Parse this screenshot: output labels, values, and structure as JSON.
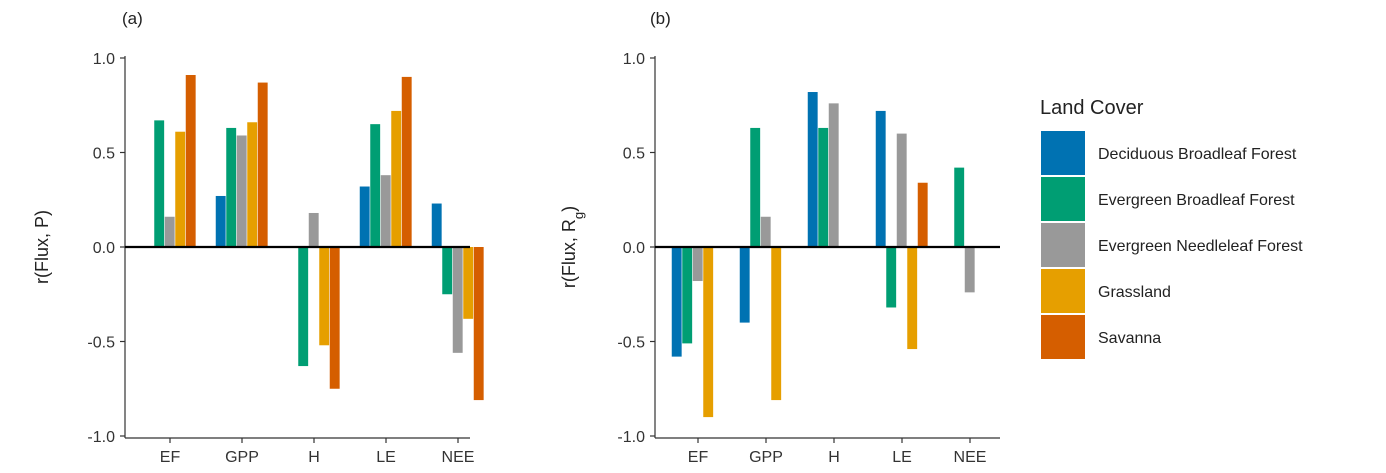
{
  "legend": {
    "title": "Land Cover",
    "entries": [
      {
        "name": "Deciduous Broadleaf Forest",
        "color": "#0072B2"
      },
      {
        "name": "Evergreen Broadleaf Forest",
        "color": "#009E73"
      },
      {
        "name": "Evergreen Needleleaf Forest",
        "color": "#999999"
      },
      {
        "name": "Grassland",
        "color": "#E69F00"
      },
      {
        "name": "Savanna",
        "color": "#D55E00"
      }
    ]
  },
  "chart_data": [
    {
      "type": "bar",
      "panel_label": "(a)",
      "ylabel": "r(Flux, P)",
      "ylabel_sub": "",
      "ylabel_suffix": "",
      "categories": [
        "EF",
        "GPP",
        "H",
        "LE",
        "NEE"
      ],
      "ylim": [
        -1.0,
        1.0
      ],
      "yticks": [
        1.0,
        0.5,
        0.0,
        -0.5,
        -1.0
      ],
      "ytick_labels": [
        "1.0",
        "0.5",
        "0.0",
        "-0.5",
        "-1.0"
      ],
      "series": [
        {
          "name": "Deciduous Broadleaf Forest",
          "values": [
            null,
            0.27,
            null,
            0.32,
            0.23
          ]
        },
        {
          "name": "Evergreen Broadleaf Forest",
          "values": [
            0.67,
            0.63,
            -0.63,
            0.65,
            -0.25
          ]
        },
        {
          "name": "Evergreen Needleleaf Forest",
          "values": [
            0.16,
            0.59,
            0.18,
            0.38,
            -0.56
          ]
        },
        {
          "name": "Grassland",
          "values": [
            0.61,
            0.66,
            -0.52,
            0.72,
            -0.38
          ]
        },
        {
          "name": "Savanna",
          "values": [
            0.91,
            0.87,
            -0.75,
            0.9,
            -0.81
          ]
        }
      ]
    },
    {
      "type": "bar",
      "panel_label": "(b)",
      "ylabel": "r(Flux, R",
      "ylabel_sub": "g",
      "ylabel_suffix": ")",
      "categories": [
        "EF",
        "GPP",
        "H",
        "LE",
        "NEE"
      ],
      "ylim": [
        -1.0,
        1.0
      ],
      "yticks": [
        1.0,
        0.5,
        0.0,
        -0.5,
        -1.0
      ],
      "ytick_labels": [
        "1.0",
        "0.5",
        "0.0",
        "-0.5",
        "-1.0"
      ],
      "series": [
        {
          "name": "Deciduous Broadleaf Forest",
          "values": [
            -0.58,
            -0.4,
            0.82,
            0.72,
            null
          ]
        },
        {
          "name": "Evergreen Broadleaf Forest",
          "values": [
            -0.51,
            0.63,
            0.63,
            -0.32,
            0.42
          ]
        },
        {
          "name": "Evergreen Needleleaf Forest",
          "values": [
            -0.18,
            0.16,
            0.76,
            0.6,
            -0.24
          ]
        },
        {
          "name": "Grassland",
          "values": [
            -0.9,
            -0.81,
            null,
            -0.54,
            null
          ]
        },
        {
          "name": "Savanna",
          "values": [
            null,
            null,
            null,
            0.34,
            null
          ]
        }
      ]
    }
  ]
}
